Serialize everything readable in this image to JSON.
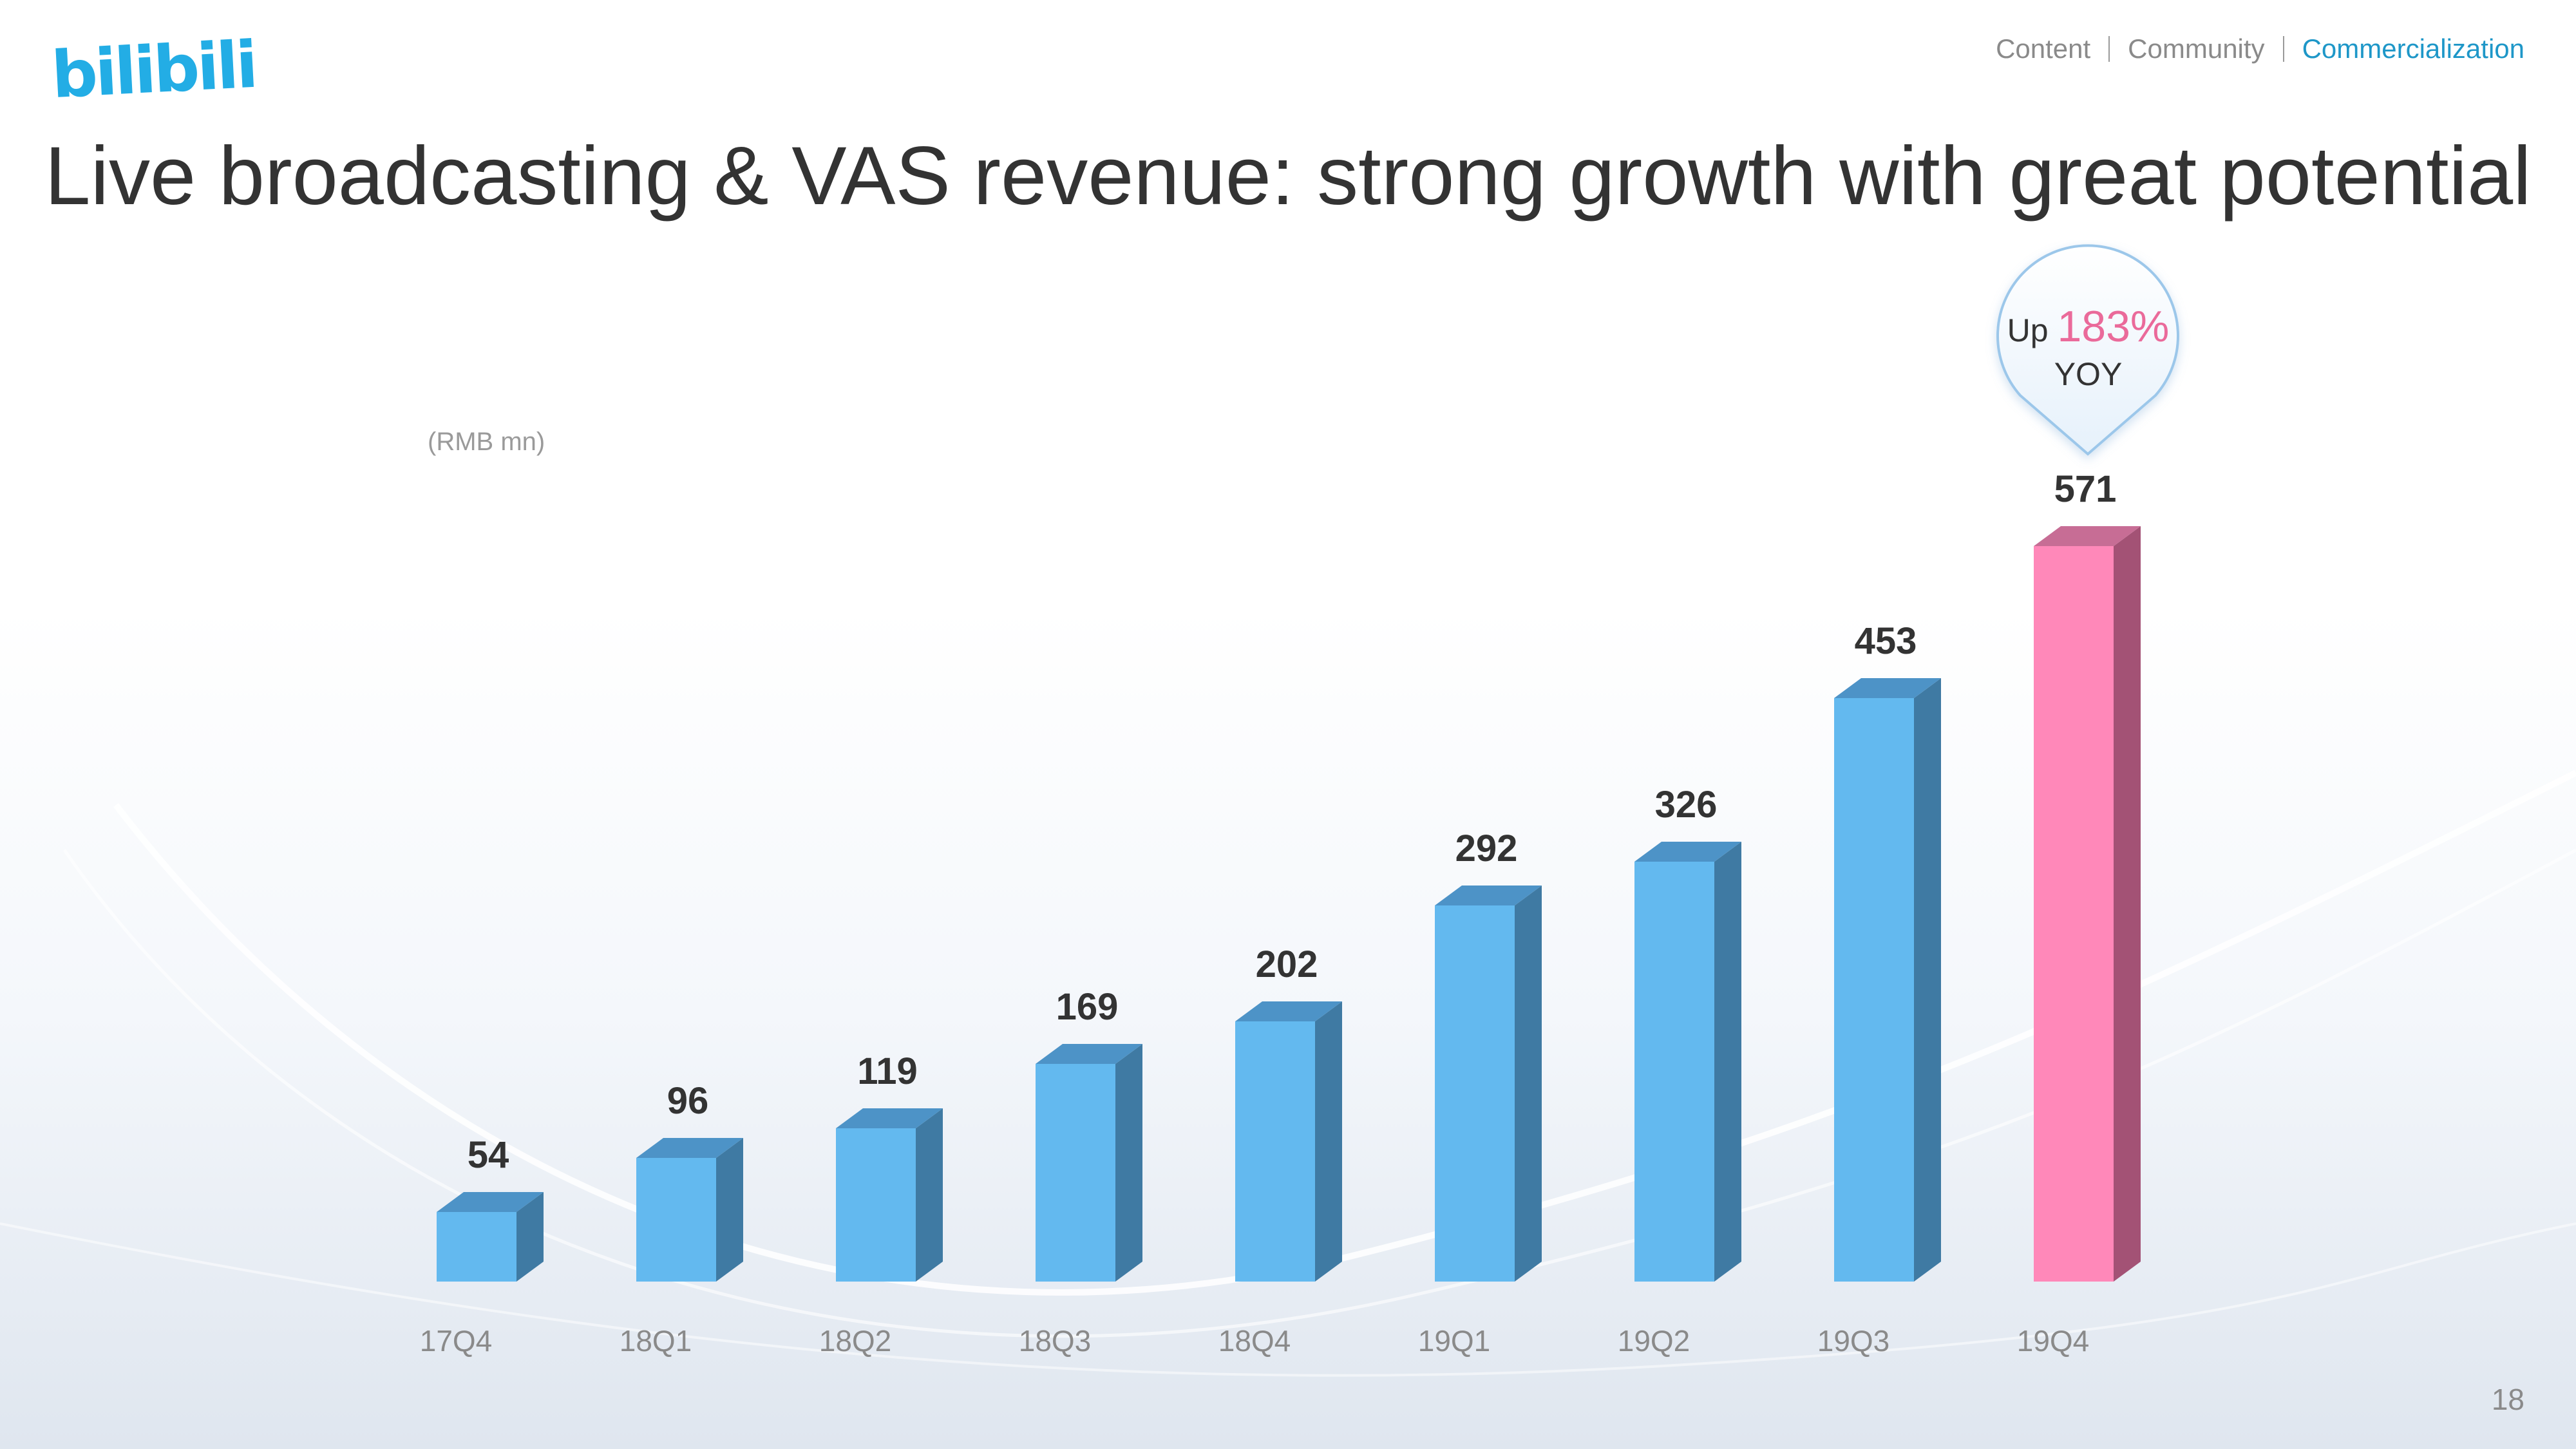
{
  "brand": {
    "logo_text": "bilibili",
    "accent_color": "#23ade5"
  },
  "nav": {
    "items": [
      "Content",
      "Community",
      "Commercialization"
    ],
    "active": "Commercialization"
  },
  "title": "Live broadcasting & VAS revenue: strong growth with great potential",
  "callout": {
    "prefix": "Up",
    "value": "183%",
    "suffix": "YOY",
    "highlight_color": "#ea6a9a"
  },
  "page_number": "18",
  "chart_data": {
    "type": "bar",
    "title": "",
    "unit_label": "(RMB mn)",
    "xlabel": "",
    "ylabel": "",
    "ylim": [
      0,
      600
    ],
    "grid": false,
    "legend": "none",
    "categories": [
      "17Q4",
      "18Q1",
      "18Q2",
      "18Q3",
      "18Q4",
      "19Q1",
      "19Q2",
      "19Q3",
      "19Q4"
    ],
    "series": [
      {
        "name": "Live broadcasting & VAS revenue",
        "values": [
          54,
          96,
          119,
          169,
          202,
          292,
          326,
          453,
          571
        ],
        "data_labels": [
          "54",
          "96",
          "119",
          "169",
          "202",
          "292",
          "326",
          "453",
          "571"
        ]
      }
    ],
    "colors": {
      "bar": "#63b9ef",
      "bar_top": "#4d93c7",
      "bar_side": "#3f7aa3",
      "highlight": "#ff88b9",
      "highlight_top": "#c76d95",
      "highlight_side": "#a35275"
    },
    "highlight_index": 8
  }
}
